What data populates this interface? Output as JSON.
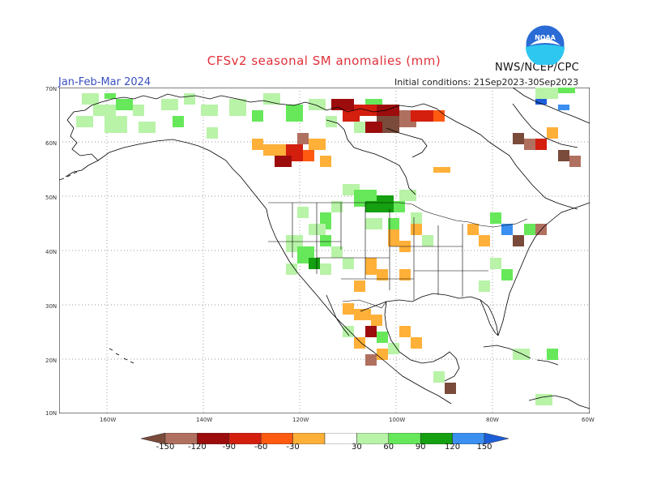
{
  "title": "CFSv2 seasonal SM anomalies (mm)",
  "season": "Jan-Feb-Mar 2024",
  "initial_conditions": "Initial conditions: 21Sep2023-30Sep2023",
  "agency": "NWS/NCEP/CPC",
  "logo_text": "NOAA",
  "lat_labels": [
    "70N",
    "60N",
    "50N",
    "40N",
    "30N",
    "20N",
    "10N"
  ],
  "lon_labels": [
    "160W",
    "140W",
    "120W",
    "100W",
    "80W",
    "60W"
  ],
  "legend": {
    "labels": [
      "-150",
      "-120",
      "-90",
      "-60",
      "-30",
      "30",
      "60",
      "90",
      "120",
      "150"
    ],
    "colors": [
      "#7a4a3a",
      "#b07060",
      "#9c0c0c",
      "#d41e0e",
      "#ff5a10",
      "#ffb038",
      "#ffffff",
      "#b8f3a8",
      "#66e85a",
      "#14a010",
      "#3a8ff0",
      "#1c5ed8"
    ]
  }
}
